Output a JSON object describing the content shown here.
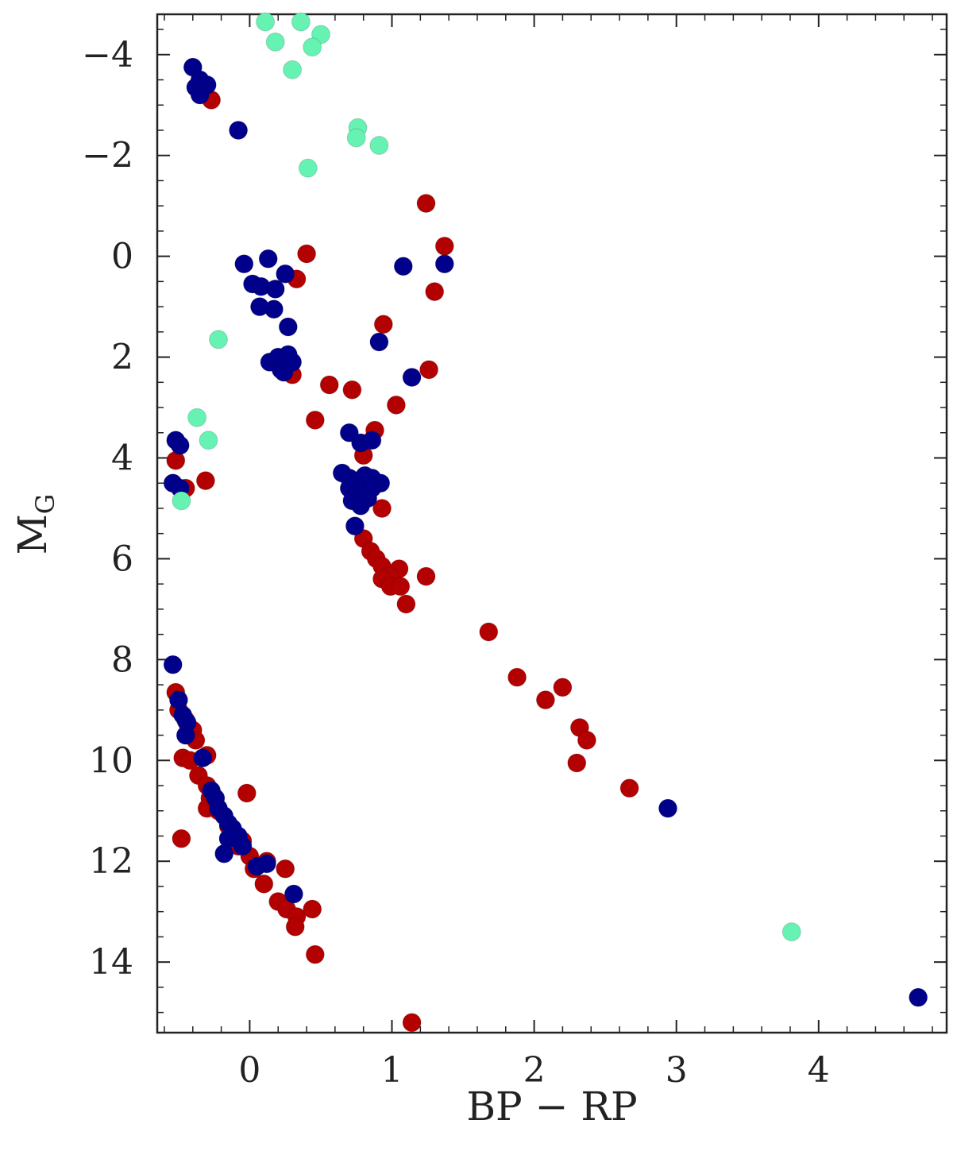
{
  "chart_data": {
    "type": "scatter",
    "xlabel": "BP − RP",
    "ylabel_main": "M",
    "ylabel_sub": "G",
    "xlim": [
      -0.65,
      4.9
    ],
    "ylim": [
      -4.8,
      15.4
    ],
    "y_inverted": true,
    "x_ticks": [
      0,
      1,
      2,
      3,
      4
    ],
    "x_tick_labels": [
      "0",
      "1",
      "2",
      "3",
      "4"
    ],
    "y_ticks": [
      -4,
      -2,
      0,
      2,
      4,
      6,
      8,
      10,
      12,
      14
    ],
    "y_tick_labels": [
      "−4",
      "−2",
      "0",
      "2",
      "4",
      "6",
      "8",
      "10",
      "12",
      "14"
    ],
    "grid": false,
    "series": [
      {
        "color": "#b30000",
        "points": [
          [
            -0.27,
            -3.1
          ],
          [
            1.24,
            -1.05
          ],
          [
            1.37,
            -0.2
          ],
          [
            0.4,
            -0.05
          ],
          [
            0.33,
            0.45
          ],
          [
            1.3,
            0.7
          ],
          [
            0.94,
            1.35
          ],
          [
            1.26,
            2.25
          ],
          [
            0.3,
            2.35
          ],
          [
            0.56,
            2.55
          ],
          [
            0.72,
            2.65
          ],
          [
            1.03,
            2.95
          ],
          [
            0.46,
            3.25
          ],
          [
            0.88,
            3.45
          ],
          [
            0.8,
            3.95
          ],
          [
            -0.52,
            4.05
          ],
          [
            -0.31,
            4.45
          ],
          [
            -0.45,
            4.6
          ],
          [
            0.93,
            5.0
          ],
          [
            0.8,
            5.6
          ],
          [
            0.85,
            5.85
          ],
          [
            0.89,
            6.0
          ],
          [
            0.93,
            6.15
          ],
          [
            1.05,
            6.2
          ],
          [
            0.99,
            6.35
          ],
          [
            0.93,
            6.4
          ],
          [
            1.24,
            6.35
          ],
          [
            0.99,
            6.55
          ],
          [
            1.06,
            6.55
          ],
          [
            1.1,
            6.9
          ],
          [
            1.68,
            7.45
          ],
          [
            1.88,
            8.35
          ],
          [
            2.2,
            8.55
          ],
          [
            2.08,
            8.8
          ],
          [
            2.32,
            9.35
          ],
          [
            2.37,
            9.6
          ],
          [
            2.3,
            10.05
          ],
          [
            2.67,
            10.55
          ],
          [
            -0.52,
            8.65
          ],
          [
            -0.5,
            9.0
          ],
          [
            -0.45,
            9.2
          ],
          [
            -0.4,
            9.4
          ],
          [
            -0.38,
            9.6
          ],
          [
            -0.3,
            9.9
          ],
          [
            -0.47,
            9.95
          ],
          [
            -0.42,
            10.0
          ],
          [
            -0.36,
            10.3
          ],
          [
            -0.3,
            10.5
          ],
          [
            -0.28,
            10.75
          ],
          [
            -0.3,
            10.95
          ],
          [
            -0.22,
            11.0
          ],
          [
            -0.15,
            11.3
          ],
          [
            -0.02,
            10.65
          ],
          [
            -0.05,
            11.6
          ],
          [
            -0.08,
            11.7
          ],
          [
            0.0,
            11.9
          ],
          [
            0.12,
            12.0
          ],
          [
            0.03,
            12.15
          ],
          [
            0.25,
            12.15
          ],
          [
            0.1,
            12.45
          ],
          [
            0.2,
            12.8
          ],
          [
            0.26,
            12.95
          ],
          [
            0.33,
            13.1
          ],
          [
            0.44,
            12.95
          ],
          [
            0.32,
            13.3
          ],
          [
            0.46,
            13.85
          ],
          [
            -0.48,
            11.55
          ],
          [
            1.14,
            15.2
          ]
        ]
      },
      {
        "color": "#00008b",
        "points": [
          [
            -0.4,
            -3.75
          ],
          [
            -0.35,
            -3.5
          ],
          [
            -0.3,
            -3.4
          ],
          [
            -0.38,
            -3.35
          ],
          [
            -0.35,
            -3.2
          ],
          [
            -0.08,
            -2.5
          ],
          [
            -0.04,
            0.15
          ],
          [
            0.13,
            0.05
          ],
          [
            0.02,
            0.55
          ],
          [
            0.08,
            0.6
          ],
          [
            0.18,
            0.65
          ],
          [
            0.25,
            0.35
          ],
          [
            0.17,
            1.05
          ],
          [
            0.07,
            1.0
          ],
          [
            0.27,
            1.4
          ],
          [
            1.08,
            0.2
          ],
          [
            1.37,
            0.15
          ],
          [
            0.91,
            1.7
          ],
          [
            1.14,
            2.4
          ],
          [
            0.14,
            2.1
          ],
          [
            0.2,
            2.0
          ],
          [
            0.22,
            2.25
          ],
          [
            0.27,
            1.95
          ],
          [
            0.3,
            2.1
          ],
          [
            0.24,
            2.3
          ],
          [
            0.7,
            3.5
          ],
          [
            0.78,
            3.7
          ],
          [
            0.86,
            3.65
          ],
          [
            -0.52,
            3.65
          ],
          [
            -0.49,
            3.75
          ],
          [
            0.65,
            4.3
          ],
          [
            0.7,
            4.4
          ],
          [
            0.76,
            4.45
          ],
          [
            0.81,
            4.35
          ],
          [
            0.86,
            4.4
          ],
          [
            0.92,
            4.5
          ],
          [
            0.7,
            4.6
          ],
          [
            0.75,
            4.7
          ],
          [
            0.81,
            4.65
          ],
          [
            0.86,
            4.6
          ],
          [
            0.72,
            4.85
          ],
          [
            0.78,
            4.95
          ],
          [
            0.83,
            4.8
          ],
          [
            0.74,
            5.35
          ],
          [
            -0.54,
            4.5
          ],
          [
            -0.49,
            4.6
          ],
          [
            -0.54,
            8.1
          ],
          [
            -0.5,
            8.8
          ],
          [
            -0.47,
            9.1
          ],
          [
            -0.44,
            9.25
          ],
          [
            -0.45,
            9.5
          ],
          [
            -0.33,
            9.95
          ],
          [
            -0.27,
            10.6
          ],
          [
            -0.24,
            10.75
          ],
          [
            -0.22,
            10.95
          ],
          [
            -0.18,
            11.1
          ],
          [
            -0.15,
            11.25
          ],
          [
            -0.12,
            11.35
          ],
          [
            -0.08,
            11.5
          ],
          [
            -0.15,
            11.55
          ],
          [
            -0.05,
            11.7
          ],
          [
            -0.18,
            11.85
          ],
          [
            0.05,
            12.1
          ],
          [
            0.12,
            12.05
          ],
          [
            0.31,
            12.65
          ],
          [
            2.94,
            10.95
          ],
          [
            4.7,
            14.7
          ]
        ]
      },
      {
        "color": "#66f2b2",
        "points": [
          [
            0.11,
            -4.65
          ],
          [
            0.36,
            -4.65
          ],
          [
            0.18,
            -4.25
          ],
          [
            0.5,
            -4.4
          ],
          [
            0.44,
            -4.15
          ],
          [
            0.3,
            -3.7
          ],
          [
            0.76,
            -2.55
          ],
          [
            0.75,
            -2.35
          ],
          [
            0.91,
            -2.2
          ],
          [
            0.41,
            -1.75
          ],
          [
            -0.22,
            1.65
          ],
          [
            -0.37,
            3.2
          ],
          [
            -0.29,
            3.65
          ],
          [
            -0.48,
            4.85
          ],
          [
            3.81,
            13.4
          ]
        ]
      }
    ]
  }
}
